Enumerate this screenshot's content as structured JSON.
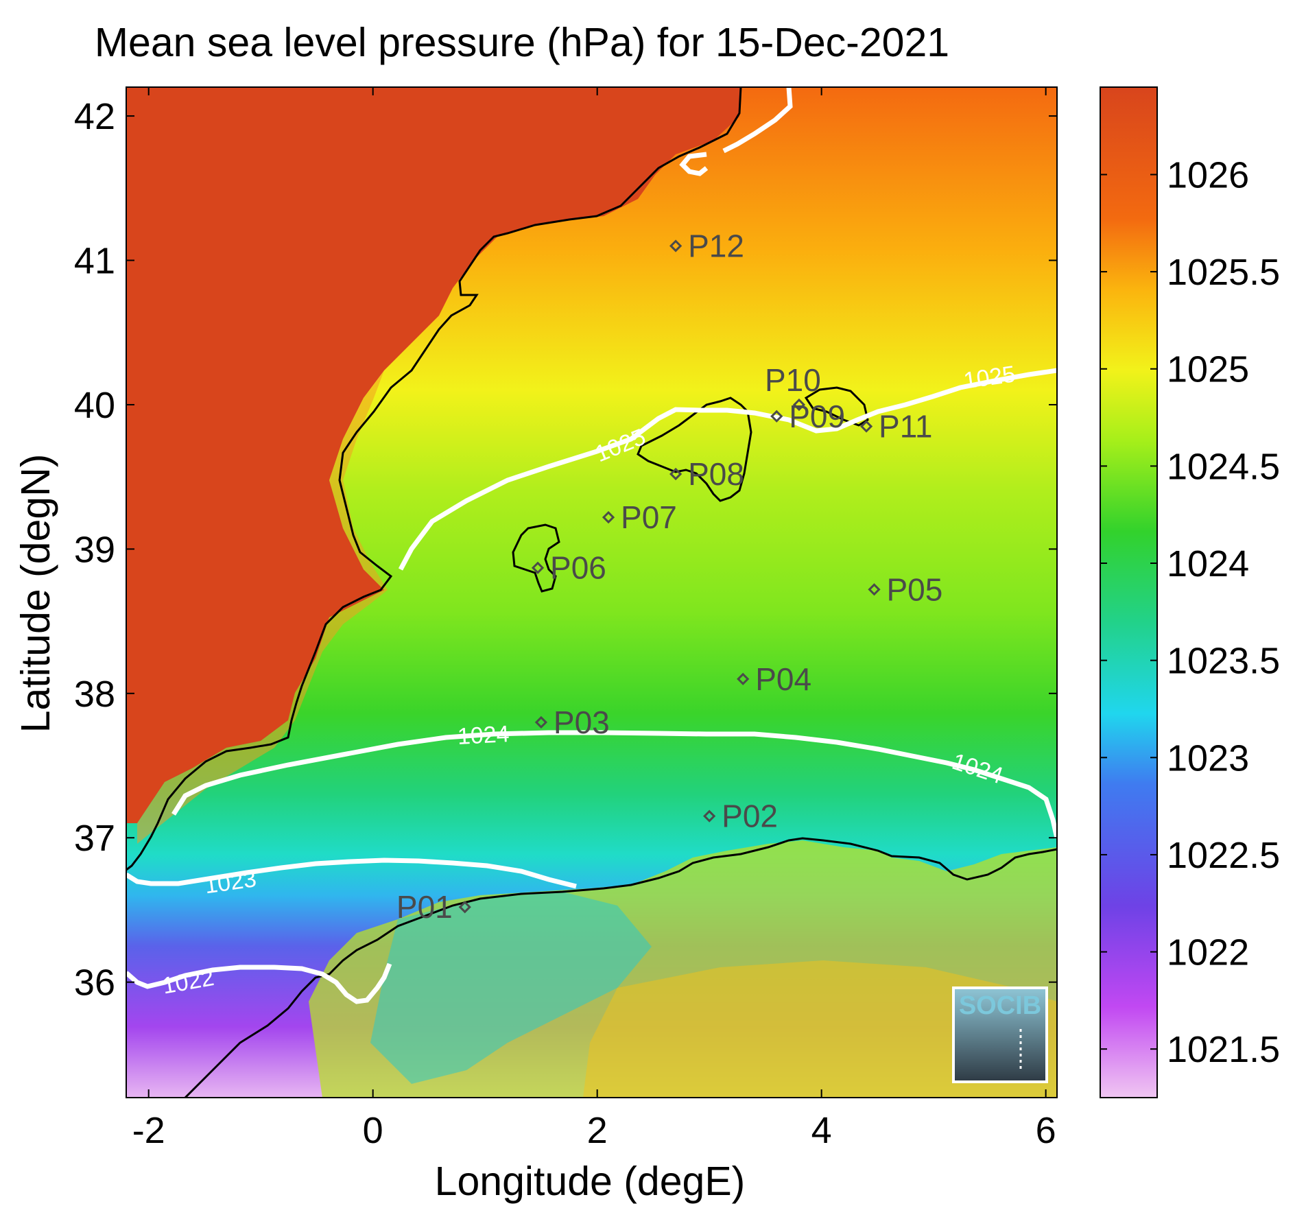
{
  "title": "Mean sea level pressure (hPa) for 15-Dec-2021",
  "xlabel": "Longitude (degE)",
  "ylabel": "Latitude (degN)",
  "logo_text": "SOCIB",
  "chart_data": {
    "type": "heatmap",
    "xlim": [
      -2.2,
      6.1
    ],
    "ylim": [
      35.2,
      42.2
    ],
    "x_ticks": [
      -2,
      0,
      2,
      4,
      6
    ],
    "y_ticks": [
      36,
      37,
      38,
      39,
      40,
      41,
      42
    ],
    "colorbar": {
      "range": [
        1021.25,
        1026.45
      ],
      "ticks": [
        1021.5,
        1022,
        1022.5,
        1023,
        1023.5,
        1024,
        1024.5,
        1025,
        1025.5,
        1026
      ],
      "colors": [
        "#f0c6f2",
        "#c148f2",
        "#6e42e6",
        "#3f7bf0",
        "#20d6ee",
        "#22d28a",
        "#32d22c",
        "#a6ef1a",
        "#f2f21a",
        "#fbb40e",
        "#f36a10",
        "#d8451c"
      ]
    },
    "contours": [
      {
        "level": "1022",
        "label": "1022"
      },
      {
        "level": "1023",
        "label": "1023"
      },
      {
        "level": "1024",
        "label": "1024"
      },
      {
        "level": "1025",
        "label": "1025"
      }
    ],
    "stations": [
      {
        "name": "P01",
        "lon": 0.82,
        "lat": 36.52
      },
      {
        "name": "P02",
        "lon": 3.0,
        "lat": 37.15
      },
      {
        "name": "P03",
        "lon": 1.5,
        "lat": 37.8
      },
      {
        "name": "P04",
        "lon": 3.3,
        "lat": 38.1
      },
      {
        "name": "P05",
        "lon": 4.47,
        "lat": 38.72
      },
      {
        "name": "P06",
        "lon": 1.47,
        "lat": 38.87
      },
      {
        "name": "P07",
        "lon": 2.1,
        "lat": 39.22
      },
      {
        "name": "P08",
        "lon": 2.7,
        "lat": 39.52
      },
      {
        "name": "P09",
        "lon": 3.6,
        "lat": 39.92
      },
      {
        "name": "P10",
        "lon": 3.8,
        "lat": 40.0
      },
      {
        "name": "P11",
        "lon": 4.4,
        "lat": 39.85
      },
      {
        "name": "P12",
        "lon": 2.7,
        "lat": 41.1
      }
    ]
  }
}
